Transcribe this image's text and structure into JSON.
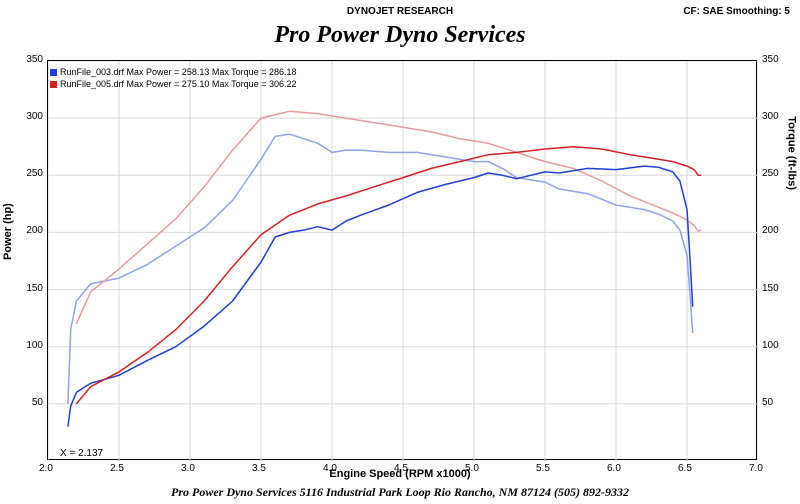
{
  "header": {
    "center": "DYNOJET RESEARCH",
    "right": "CF: SAE  Smoothing: 5"
  },
  "title": "Pro Power Dyno Services",
  "footer": "Pro Power Dyno Services 5116 Industrial Park Loop Rio Rancho, NM 87124 (505) 892-9332",
  "axes": {
    "x": {
      "label": "Engine Speed (RPM x1000)",
      "min": 2.0,
      "max": 7.0,
      "step": 0.5,
      "fontsize": 11
    },
    "yLeft": {
      "label": "Power (hp)",
      "min": 0,
      "max": 350,
      "step": 50,
      "fontsize": 11
    },
    "yRight": {
      "label": "Torque (ft-lbs)",
      "min": 0,
      "max": 350,
      "step": 50,
      "fontsize": 11
    }
  },
  "cursor": {
    "x": 2.137
  },
  "grid_color": "#d8d8d8",
  "background": "#ffffff",
  "legend": {
    "items": [
      {
        "color": "#1c3fd6",
        "text": "RunFile_003.drf Max Power = 258.13     Max Torque = 286.18"
      },
      {
        "color": "#d62020",
        "text": "RunFile_005.drf Max Power = 275.10     Max Torque = 306.22"
      }
    ]
  },
  "series": {
    "power003": {
      "color": "#1c3fd6",
      "width": 1.5,
      "points": [
        [
          2.14,
          30
        ],
        [
          2.16,
          48
        ],
        [
          2.2,
          60
        ],
        [
          2.3,
          68
        ],
        [
          2.5,
          75
        ],
        [
          2.7,
          88
        ],
        [
          2.9,
          100
        ],
        [
          3.1,
          118
        ],
        [
          3.3,
          140
        ],
        [
          3.5,
          174
        ],
        [
          3.6,
          196
        ],
        [
          3.7,
          200
        ],
        [
          3.8,
          202
        ],
        [
          3.9,
          205
        ],
        [
          4.0,
          202
        ],
        [
          4.1,
          210
        ],
        [
          4.2,
          215
        ],
        [
          4.4,
          224
        ],
        [
          4.6,
          235
        ],
        [
          4.8,
          242
        ],
        [
          5.0,
          248
        ],
        [
          5.1,
          252
        ],
        [
          5.2,
          250
        ],
        [
          5.3,
          247
        ],
        [
          5.4,
          250
        ],
        [
          5.5,
          253
        ],
        [
          5.6,
          252
        ],
        [
          5.8,
          256
        ],
        [
          6.0,
          255
        ],
        [
          6.2,
          258
        ],
        [
          6.3,
          257
        ],
        [
          6.4,
          253
        ],
        [
          6.45,
          245
        ],
        [
          6.5,
          220
        ],
        [
          6.52,
          180
        ],
        [
          6.54,
          135
        ]
      ]
    },
    "power005": {
      "color": "#d62020",
      "width": 1.5,
      "points": [
        [
          2.2,
          50
        ],
        [
          2.3,
          65
        ],
        [
          2.5,
          78
        ],
        [
          2.7,
          95
        ],
        [
          2.9,
          115
        ],
        [
          3.1,
          140
        ],
        [
          3.3,
          170
        ],
        [
          3.5,
          198
        ],
        [
          3.7,
          215
        ],
        [
          3.9,
          225
        ],
        [
          4.1,
          232
        ],
        [
          4.3,
          240
        ],
        [
          4.5,
          248
        ],
        [
          4.7,
          256
        ],
        [
          4.9,
          262
        ],
        [
          5.1,
          268
        ],
        [
          5.3,
          270
        ],
        [
          5.5,
          273
        ],
        [
          5.7,
          275
        ],
        [
          5.9,
          273
        ],
        [
          6.1,
          268
        ],
        [
          6.3,
          264
        ],
        [
          6.4,
          262
        ],
        [
          6.5,
          258
        ],
        [
          6.55,
          255
        ],
        [
          6.58,
          250
        ],
        [
          6.6,
          250
        ]
      ]
    },
    "torque003": {
      "color": "#8fa3e8",
      "width": 1.5,
      "points": [
        [
          2.14,
          50
        ],
        [
          2.16,
          115
        ],
        [
          2.2,
          140
        ],
        [
          2.3,
          155
        ],
        [
          2.5,
          160
        ],
        [
          2.7,
          172
        ],
        [
          2.9,
          188
        ],
        [
          3.1,
          204
        ],
        [
          3.3,
          228
        ],
        [
          3.5,
          264
        ],
        [
          3.6,
          284
        ],
        [
          3.7,
          286
        ],
        [
          3.8,
          282
        ],
        [
          3.9,
          278
        ],
        [
          4.0,
          270
        ],
        [
          4.1,
          272
        ],
        [
          4.2,
          272
        ],
        [
          4.4,
          270
        ],
        [
          4.6,
          270
        ],
        [
          4.8,
          266
        ],
        [
          5.0,
          262
        ],
        [
          5.1,
          262
        ],
        [
          5.2,
          256
        ],
        [
          5.3,
          248
        ],
        [
          5.4,
          246
        ],
        [
          5.5,
          244
        ],
        [
          5.6,
          238
        ],
        [
          5.8,
          234
        ],
        [
          6.0,
          224
        ],
        [
          6.2,
          220
        ],
        [
          6.3,
          216
        ],
        [
          6.4,
          210
        ],
        [
          6.45,
          202
        ],
        [
          6.5,
          180
        ],
        [
          6.52,
          148
        ],
        [
          6.54,
          112
        ]
      ]
    },
    "torque005": {
      "color": "#e89a9a",
      "width": 1.5,
      "points": [
        [
          2.2,
          120
        ],
        [
          2.3,
          148
        ],
        [
          2.5,
          168
        ],
        [
          2.7,
          190
        ],
        [
          2.9,
          212
        ],
        [
          3.1,
          240
        ],
        [
          3.3,
          272
        ],
        [
          3.5,
          300
        ],
        [
          3.7,
          306
        ],
        [
          3.9,
          304
        ],
        [
          4.1,
          300
        ],
        [
          4.3,
          296
        ],
        [
          4.5,
          292
        ],
        [
          4.7,
          288
        ],
        [
          4.9,
          282
        ],
        [
          5.1,
          278
        ],
        [
          5.3,
          270
        ],
        [
          5.5,
          262
        ],
        [
          5.7,
          256
        ],
        [
          5.9,
          245
        ],
        [
          6.1,
          232
        ],
        [
          6.3,
          222
        ],
        [
          6.4,
          217
        ],
        [
          6.5,
          211
        ],
        [
          6.55,
          206
        ],
        [
          6.58,
          201
        ],
        [
          6.6,
          202
        ]
      ]
    }
  }
}
